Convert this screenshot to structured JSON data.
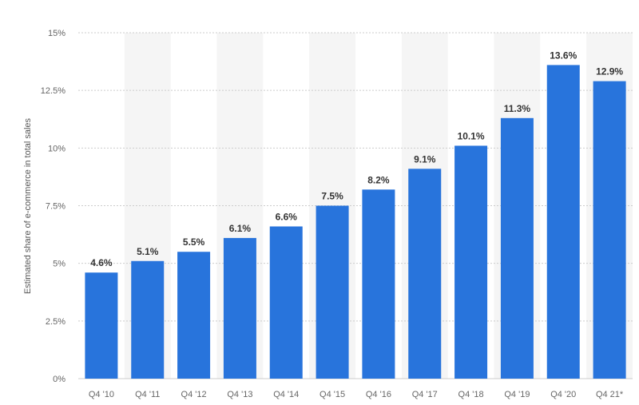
{
  "chart_data": {
    "type": "bar",
    "title": "",
    "xlabel": "",
    "ylabel": "Estimated share of e-commerce in total sales",
    "categories": [
      "Q4 '10",
      "Q4 '11",
      "Q4 '12",
      "Q4 '13",
      "Q4 '14",
      "Q4 '15",
      "Q4 '16",
      "Q4 '17",
      "Q4 '18",
      "Q4 '19",
      "Q4 '20",
      "Q4 21*"
    ],
    "values": [
      4.6,
      5.1,
      5.5,
      6.1,
      6.6,
      7.5,
      8.2,
      9.1,
      10.1,
      11.3,
      13.6,
      12.9
    ],
    "value_labels": [
      "4.6%",
      "5.1%",
      "5.5%",
      "6.1%",
      "6.6%",
      "7.5%",
      "8.2%",
      "9.1%",
      "10.1%",
      "11.3%",
      "13.6%",
      "12.9%"
    ],
    "y_ticks": [
      0,
      2.5,
      5,
      7.5,
      10,
      12.5,
      15
    ],
    "y_tick_labels": [
      "0%",
      "2.5%",
      "5%",
      "7.5%",
      "10%",
      "12.5%",
      "15%"
    ],
    "ylim": [
      0,
      15
    ],
    "grid": true,
    "legend": "none",
    "colors": {
      "bar": "#2874dc",
      "stripe": "#f5f5f5",
      "grid": "#cccccc"
    }
  }
}
